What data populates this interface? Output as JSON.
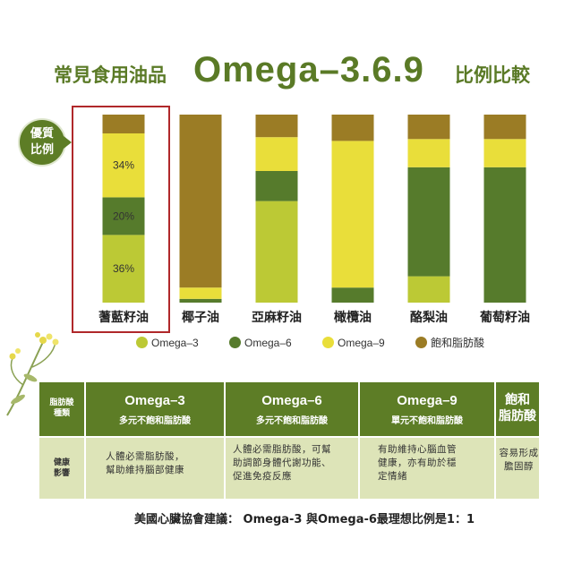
{
  "title": {
    "prefix": "常見食用油品",
    "main": "Omega–3.6.9",
    "suffix": "比例比較"
  },
  "badge": {
    "line1": "優質",
    "line2": "比例"
  },
  "colors": {
    "omega3": "#bcc935",
    "omega6": "#567b2c",
    "omega9": "#e9de3a",
    "saturated": "#9b7c25",
    "header_green": "#5d7d26",
    "body_tint": "#dde4b8",
    "highlight_border": "#b0282a",
    "title_green": "#5a7a26"
  },
  "chart_data": {
    "type": "bar",
    "stacked": true,
    "orientation": "vertical",
    "categories": [
      "蓍藍籽油",
      "椰子油",
      "亞麻籽油",
      "橄欖油",
      "酪梨油",
      "葡萄籽油"
    ],
    "series": [
      {
        "name": "Omega–3",
        "color_key": "omega3",
        "values": [
          36,
          0,
          54,
          0,
          14,
          0
        ]
      },
      {
        "name": "Omega–6",
        "color_key": "omega6",
        "values": [
          20,
          2,
          16,
          8,
          58,
          72
        ]
      },
      {
        "name": "Omega–9",
        "color_key": "omega9",
        "values": [
          34,
          6,
          18,
          78,
          15,
          15
        ]
      },
      {
        "name": "飽和脂肪酸",
        "color_key": "saturated",
        "values": [
          10,
          92,
          12,
          14,
          13,
          13
        ]
      }
    ],
    "data_labels": [
      {
        "category": "蓍藍籽油",
        "series": "Omega–9",
        "text": "34%"
      },
      {
        "category": "蓍藍籽油",
        "series": "Omega–6",
        "text": "20%"
      },
      {
        "category": "蓍藍籽油",
        "series": "Omega–3",
        "text": "36%"
      }
    ],
    "highlighted_category": "蓍藍籽油",
    "ylim": [
      0,
      100
    ],
    "grid": false,
    "legend_position": "bottom"
  },
  "legend": [
    {
      "label": "Omega–3",
      "color_key": "omega3"
    },
    {
      "label": "Omega–6",
      "color_key": "omega6"
    },
    {
      "label": "Omega–9",
      "color_key": "omega9"
    },
    {
      "label": "飽和脂肪酸",
      "color_key": "saturated"
    }
  ],
  "table": {
    "row_header": {
      "type_label": "脂肪酸\n種類",
      "effect_label": "健康\n影響"
    },
    "columns": [
      {
        "title": "Omega–3",
        "subtitle": "多元不飽和脂肪酸",
        "effect": "人體必需脂肪酸，\n幫助維持腦部健康"
      },
      {
        "title": "Omega–6",
        "subtitle": "多元不飽和脂肪酸",
        "effect": "人體必需脂肪酸，可幫\n助調節身體代謝功能、\n促進免疫反應"
      },
      {
        "title": "Omega–9",
        "subtitle": "單元不飽和脂肪酸",
        "effect": "有助維持心腦血管\n健康，亦有助於穩\n定情緒"
      },
      {
        "title": "飽和\n脂肪酸",
        "subtitle": "",
        "effect": "容易形成\n膽固醇"
      }
    ]
  },
  "footnote": "美國心臟協會建議： Omega-3 與Omega-6最理想比例是1：1"
}
